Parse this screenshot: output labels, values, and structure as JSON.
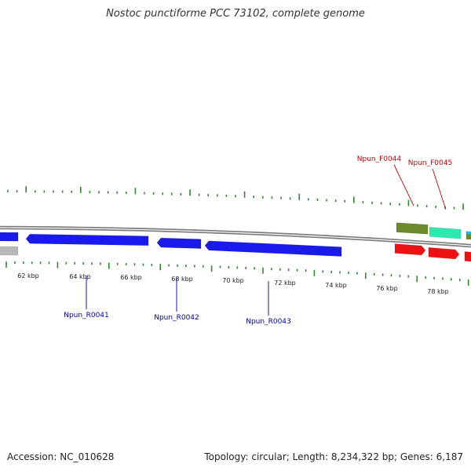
{
  "title": "Nostoc punctiforme PCC 73102, complete genome",
  "footer": {
    "accession": "Accession: NC_010628",
    "summary": "Topology: circular; Length: 8,234,322 bp; Genes: 6,187"
  },
  "colors": {
    "backbone": "#7a7a7a",
    "tick_green": "#2d8a2d",
    "reverse_gene": "#1a1aee",
    "forward_gene": "#ee1111",
    "gray_gene": "#b8b8b8",
    "olive_gene": "#6b8a2a",
    "aqua_gene": "#2ee8b0",
    "cyan_gene": "#22bbdd",
    "label_blue": "#0000aa",
    "label_red": "#cc0000"
  },
  "scale_labels": [
    "62 kbp",
    "64 kbp",
    "66 kbp",
    "68 kbp",
    "70 kbp",
    "72 kbp",
    "74 kbp",
    "76 kbp",
    "78 kbp"
  ],
  "gene_labels": {
    "reverse": [
      "Npun_R0041",
      "Npun_R0042",
      "Npun_R0043"
    ],
    "forward": [
      "Npun_F0044",
      "Npun_F0045"
    ]
  }
}
